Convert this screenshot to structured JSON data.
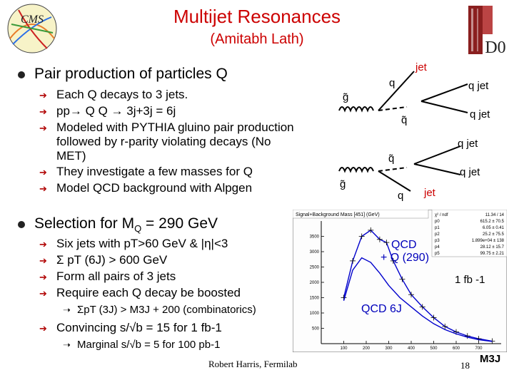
{
  "header": {
    "title": "Multijet Resonances",
    "subtitle": "(Amitabh Lath)"
  },
  "logos": {
    "cms": "CMS",
    "experiment": "D0"
  },
  "bullet1": {
    "text": "Pair production of particles Q",
    "subs": [
      "Each Q decays to 3 jets.",
      "pp→ Q Q → 3j+3j = 6j",
      "Modeled with PYTHIA gluino pair production followed by r-parity violating decays (No MET)",
      "They investigate a few masses for Q",
      "Model QCD background with Alpgen"
    ]
  },
  "bullet2": {
    "text_main": "Selection for M",
    "text_sub": "Q",
    "text_rest": " = 290 GeV",
    "subs": [
      "Six jets with pT>60 GeV & |η|<3",
      "Σ pT (6J) > 600 GeV",
      "Form all pairs of 3 jets",
      "Require each Q decay be boosted"
    ],
    "subsub": "ΣpT (3J) > M3J + 200 (combinatorics)",
    "sub_last": "Convincing s/√b = 15 for 1 fb-1",
    "subsub_last": "Marginal s/√b = 5 for 100 pb-1"
  },
  "diagram": {
    "labels": {
      "q_top": "q",
      "jet_top": "jet",
      "g1": "g̃",
      "q_jet1": "q jet",
      "q_jet2": "q jet",
      "qtilde1": "q̃",
      "q_jet3": "q jet",
      "qtilde2": "q̃",
      "q_jet4": "q jet",
      "g2": "g̃",
      "q_bottom": "q",
      "jet_bottom": "jet"
    }
  },
  "chart_data": {
    "type": "line",
    "title": "Signal+Background Mass [451] (GeV)",
    "stats": [
      [
        "χ² / ndf",
        "11.34 / 14"
      ],
      [
        "p0",
        "615.2 ± 70.5"
      ],
      [
        "p1",
        "6.05 ± 0.41"
      ],
      [
        "p2",
        "25.2 ± 75.5"
      ],
      [
        "p3",
        "1.899e+04 ± 138"
      ],
      [
        "p4",
        "28.12 ± 15.7"
      ],
      [
        "p5",
        "99.75 ± 2.21"
      ]
    ],
    "xlim": [
      0,
      800
    ],
    "ylim": [
      0,
      4000
    ],
    "yticks": [
      500,
      1000,
      1500,
      2000,
      2500,
      3000,
      3500
    ],
    "xticks": [
      100,
      200,
      300,
      400,
      500,
      600,
      700
    ],
    "xtick_labels": [
      "100",
      "200",
      "300",
      "400",
      "500",
      "600",
      "700"
    ],
    "ytick_labels": [
      "500",
      "1000",
      "1500",
      "2000",
      "2500",
      "3000",
      "3500"
    ],
    "series": [
      {
        "name": "QCD + Q (290)",
        "x": [
          100,
          140,
          180,
          220,
          260,
          290,
          320,
          360,
          400,
          450,
          500,
          550,
          600,
          650,
          700,
          760
        ],
        "values": [
          1500,
          2700,
          3500,
          3700,
          3400,
          3300,
          2700,
          2100,
          1600,
          1200,
          850,
          560,
          380,
          250,
          160,
          80
        ]
      },
      {
        "name": "QCD 6J",
        "x": [
          100,
          140,
          180,
          220,
          260,
          300,
          350,
          400,
          450,
          500,
          550,
          600,
          650,
          700,
          760
        ],
        "values": [
          1400,
          2400,
          2800,
          2650,
          2300,
          1900,
          1500,
          1200,
          900,
          650,
          460,
          320,
          210,
          130,
          70
        ]
      }
    ],
    "legend": {
      "signal_line1": "QCD",
      "signal_line2": "+ Q (290)",
      "background": "QCD 6J"
    },
    "lumi": "1 fb -1",
    "xlabel": "M3J"
  },
  "footer": {
    "author": "Robert Harris, Fermilab",
    "page": "18"
  }
}
